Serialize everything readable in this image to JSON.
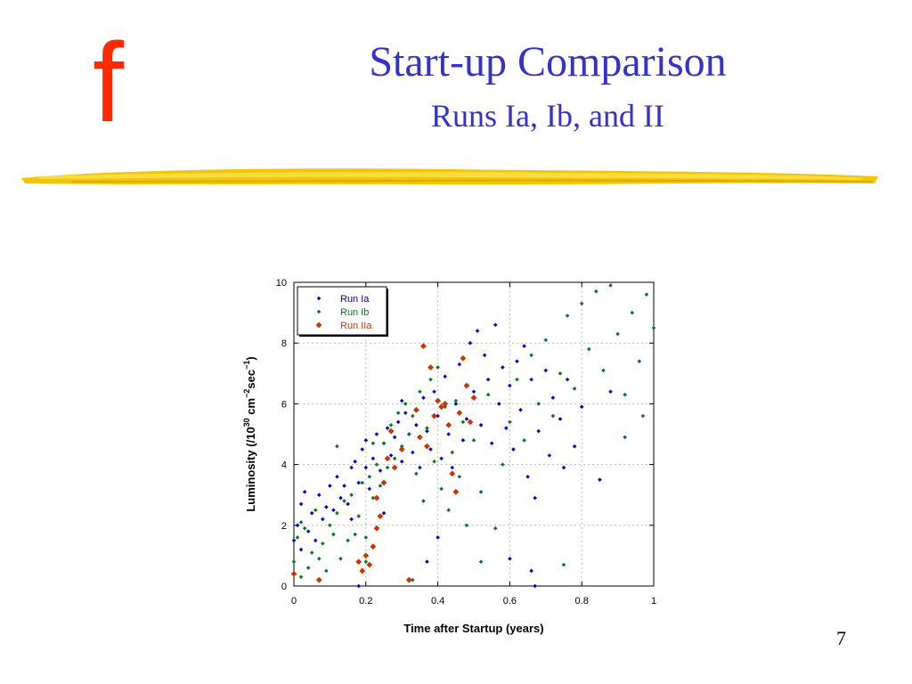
{
  "slide": {
    "logo_text": "f",
    "title": "Start-up Comparison",
    "subtitle": "Runs Ia, Ib, and II",
    "page_number": "7",
    "colors": {
      "title": "#3333cc",
      "logo": "#ff2a00",
      "brush": "#f5c400"
    }
  },
  "chart_data": {
    "type": "scatter",
    "xlabel": "Time after Startup (years)",
    "ylabel": "Luminosity (/10^30 cm^-2sec^-1)",
    "xlim": [
      0,
      1
    ],
    "ylim": [
      0,
      10
    ],
    "xticks": [
      0,
      0.2,
      0.4,
      0.6,
      0.8,
      1
    ],
    "xtick_labels": [
      "0",
      "0.2",
      "0.4",
      "0.6",
      "0.8",
      "1"
    ],
    "yticks": [
      0,
      2,
      4,
      6,
      8,
      10
    ],
    "ytick_labels": [
      "0",
      "2",
      "4",
      "6",
      "8",
      "10"
    ],
    "grid": true,
    "legend_position": "top-left",
    "series": [
      {
        "name": "Run Ia",
        "color": "#0000cc",
        "marker": "diamond",
        "points": [
          [
            0.0,
            1.5
          ],
          [
            0.01,
            2.0
          ],
          [
            0.02,
            1.2
          ],
          [
            0.02,
            2.7
          ],
          [
            0.03,
            3.1
          ],
          [
            0.04,
            1.8
          ],
          [
            0.05,
            2.4
          ],
          [
            0.06,
            1.5
          ],
          [
            0.07,
            3.0
          ],
          [
            0.08,
            2.2
          ],
          [
            0.09,
            2.6
          ],
          [
            0.1,
            3.3
          ],
          [
            0.11,
            2.5
          ],
          [
            0.12,
            3.6
          ],
          [
            0.13,
            2.9
          ],
          [
            0.14,
            3.3
          ],
          [
            0.15,
            2.7
          ],
          [
            0.16,
            3.9
          ],
          [
            0.16,
            2.2
          ],
          [
            0.17,
            4.1
          ],
          [
            0.18,
            3.4
          ],
          [
            0.19,
            4.5
          ],
          [
            0.2,
            3.9
          ],
          [
            0.2,
            4.8
          ],
          [
            0.21,
            3.2
          ],
          [
            0.22,
            4.2
          ],
          [
            0.23,
            5.0
          ],
          [
            0.24,
            3.8
          ],
          [
            0.25,
            4.7
          ],
          [
            0.26,
            5.2
          ],
          [
            0.27,
            4.3
          ],
          [
            0.28,
            4.9
          ],
          [
            0.29,
            5.4
          ],
          [
            0.3,
            4.1
          ],
          [
            0.31,
            5.7
          ],
          [
            0.32,
            5.0
          ],
          [
            0.33,
            4.4
          ],
          [
            0.34,
            5.3
          ],
          [
            0.35,
            3.9
          ],
          [
            0.36,
            6.2
          ],
          [
            0.37,
            5.1
          ],
          [
            0.38,
            4.5
          ],
          [
            0.39,
            6.4
          ],
          [
            0.4,
            5.6
          ],
          [
            0.41,
            4.2
          ],
          [
            0.42,
            6.9
          ],
          [
            0.43,
            5.0
          ],
          [
            0.44,
            3.9
          ],
          [
            0.45,
            6.0
          ],
          [
            0.46,
            7.3
          ],
          [
            0.47,
            4.8
          ],
          [
            0.48,
            5.5
          ],
          [
            0.49,
            8.0
          ],
          [
            0.5,
            6.4
          ],
          [
            0.51,
            8.4
          ],
          [
            0.52,
            5.3
          ],
          [
            0.53,
            7.6
          ],
          [
            0.54,
            6.8
          ],
          [
            0.55,
            4.7
          ],
          [
            0.56,
            8.6
          ],
          [
            0.57,
            6.0
          ],
          [
            0.58,
            7.2
          ],
          [
            0.59,
            5.2
          ],
          [
            0.6,
            6.6
          ],
          [
            0.61,
            4.5
          ],
          [
            0.62,
            7.4
          ],
          [
            0.63,
            5.8
          ],
          [
            0.64,
            7.9
          ],
          [
            0.65,
            3.6
          ],
          [
            0.66,
            6.8
          ],
          [
            0.67,
            2.9
          ],
          [
            0.68,
            5.1
          ],
          [
            0.7,
            7.1
          ],
          [
            0.71,
            4.3
          ],
          [
            0.72,
            6.2
          ],
          [
            0.74,
            5.5
          ],
          [
            0.75,
            3.9
          ],
          [
            0.76,
            6.8
          ],
          [
            0.78,
            4.6
          ],
          [
            0.8,
            5.9
          ],
          [
            0.85,
            3.5
          ],
          [
            0.88,
            6.4
          ],
          [
            0.4,
            1.6
          ],
          [
            0.37,
            0.8
          ],
          [
            0.6,
            0.9
          ],
          [
            0.67,
            0.0
          ],
          [
            0.0,
            0.4
          ],
          [
            0.18,
            0.0
          ],
          [
            0.66,
            0.5
          ],
          [
            0.25,
            2.4
          ],
          [
            0.3,
            6.1
          ]
        ]
      },
      {
        "name": "Run Ib",
        "color": "#007a1f",
        "marker": "diamond",
        "points": [
          [
            0.0,
            0.8
          ],
          [
            0.01,
            1.6
          ],
          [
            0.02,
            0.3
          ],
          [
            0.03,
            1.9
          ],
          [
            0.04,
            0.6
          ],
          [
            0.05,
            1.1
          ],
          [
            0.06,
            2.5
          ],
          [
            0.07,
            0.9
          ],
          [
            0.08,
            1.4
          ],
          [
            0.09,
            0.5
          ],
          [
            0.1,
            2.0
          ],
          [
            0.11,
            1.7
          ],
          [
            0.12,
            2.4
          ],
          [
            0.13,
            0.9
          ],
          [
            0.14,
            2.8
          ],
          [
            0.15,
            1.5
          ],
          [
            0.16,
            3.0
          ],
          [
            0.17,
            1.7
          ],
          [
            0.18,
            2.3
          ],
          [
            0.19,
            3.4
          ],
          [
            0.2,
            1.6
          ],
          [
            0.21,
            3.6
          ],
          [
            0.22,
            2.9
          ],
          [
            0.23,
            4.0
          ],
          [
            0.24,
            3.3
          ],
          [
            0.25,
            4.7
          ],
          [
            0.26,
            3.9
          ],
          [
            0.27,
            5.3
          ],
          [
            0.28,
            4.2
          ],
          [
            0.29,
            5.7
          ],
          [
            0.3,
            4.6
          ],
          [
            0.31,
            6.0
          ],
          [
            0.32,
            5.0
          ],
          [
            0.33,
            5.6
          ],
          [
            0.34,
            3.7
          ],
          [
            0.35,
            6.4
          ],
          [
            0.36,
            2.8
          ],
          [
            0.37,
            5.2
          ],
          [
            0.38,
            6.8
          ],
          [
            0.39,
            4.1
          ],
          [
            0.4,
            7.2
          ],
          [
            0.41,
            3.2
          ],
          [
            0.42,
            5.9
          ],
          [
            0.43,
            2.5
          ],
          [
            0.44,
            4.4
          ],
          [
            0.45,
            6.1
          ],
          [
            0.46,
            3.6
          ],
          [
            0.47,
            5.4
          ],
          [
            0.48,
            2.0
          ],
          [
            0.5,
            4.8
          ],
          [
            0.52,
            3.1
          ],
          [
            0.54,
            6.3
          ],
          [
            0.56,
            1.9
          ],
          [
            0.58,
            4.0
          ],
          [
            0.6,
            5.4
          ],
          [
            0.62,
            6.8
          ],
          [
            0.64,
            4.8
          ],
          [
            0.66,
            7.6
          ],
          [
            0.68,
            6.0
          ],
          [
            0.7,
            8.1
          ],
          [
            0.72,
            5.6
          ],
          [
            0.74,
            7.0
          ],
          [
            0.76,
            8.9
          ],
          [
            0.78,
            6.5
          ],
          [
            0.8,
            9.3
          ],
          [
            0.82,
            7.8
          ],
          [
            0.84,
            9.7
          ],
          [
            0.86,
            7.1
          ],
          [
            0.88,
            9.9
          ],
          [
            0.9,
            8.3
          ],
          [
            0.92,
            6.3
          ],
          [
            0.94,
            9.0
          ],
          [
            0.96,
            7.4
          ],
          [
            0.98,
            9.6
          ],
          [
            1.0,
            8.5
          ],
          [
            0.92,
            4.9
          ],
          [
            0.97,
            5.6
          ],
          [
            0.75,
            0.7
          ],
          [
            0.12,
            4.6
          ],
          [
            0.22,
            4.7
          ],
          [
            0.33,
            0.2
          ],
          [
            0.52,
            0.8
          ],
          [
            0.2,
            0.8
          ],
          [
            0.02,
            2.1
          ]
        ]
      },
      {
        "name": "Run IIa",
        "color": "#cc3300",
        "marker": "diamond",
        "points": [
          [
            0.0,
            0.4
          ],
          [
            0.07,
            0.2
          ],
          [
            0.18,
            0.8
          ],
          [
            0.2,
            1.0
          ],
          [
            0.21,
            0.7
          ],
          [
            0.22,
            1.3
          ],
          [
            0.23,
            1.9
          ],
          [
            0.24,
            2.3
          ],
          [
            0.25,
            3.4
          ],
          [
            0.26,
            4.2
          ],
          [
            0.27,
            5.1
          ],
          [
            0.28,
            3.9
          ],
          [
            0.3,
            4.5
          ],
          [
            0.32,
            0.2
          ],
          [
            0.34,
            5.8
          ],
          [
            0.35,
            4.9
          ],
          [
            0.36,
            7.9
          ],
          [
            0.37,
            4.6
          ],
          [
            0.38,
            7.2
          ],
          [
            0.39,
            5.6
          ],
          [
            0.4,
            6.1
          ],
          [
            0.41,
            5.9
          ],
          [
            0.42,
            6.0
          ],
          [
            0.43,
            5.3
          ],
          [
            0.44,
            3.7
          ],
          [
            0.45,
            3.1
          ],
          [
            0.46,
            5.7
          ],
          [
            0.47,
            7.5
          ],
          [
            0.48,
            6.6
          ],
          [
            0.49,
            5.4
          ],
          [
            0.5,
            6.2
          ],
          [
            0.19,
            0.5
          ],
          [
            0.23,
            2.9
          ]
        ]
      }
    ]
  }
}
